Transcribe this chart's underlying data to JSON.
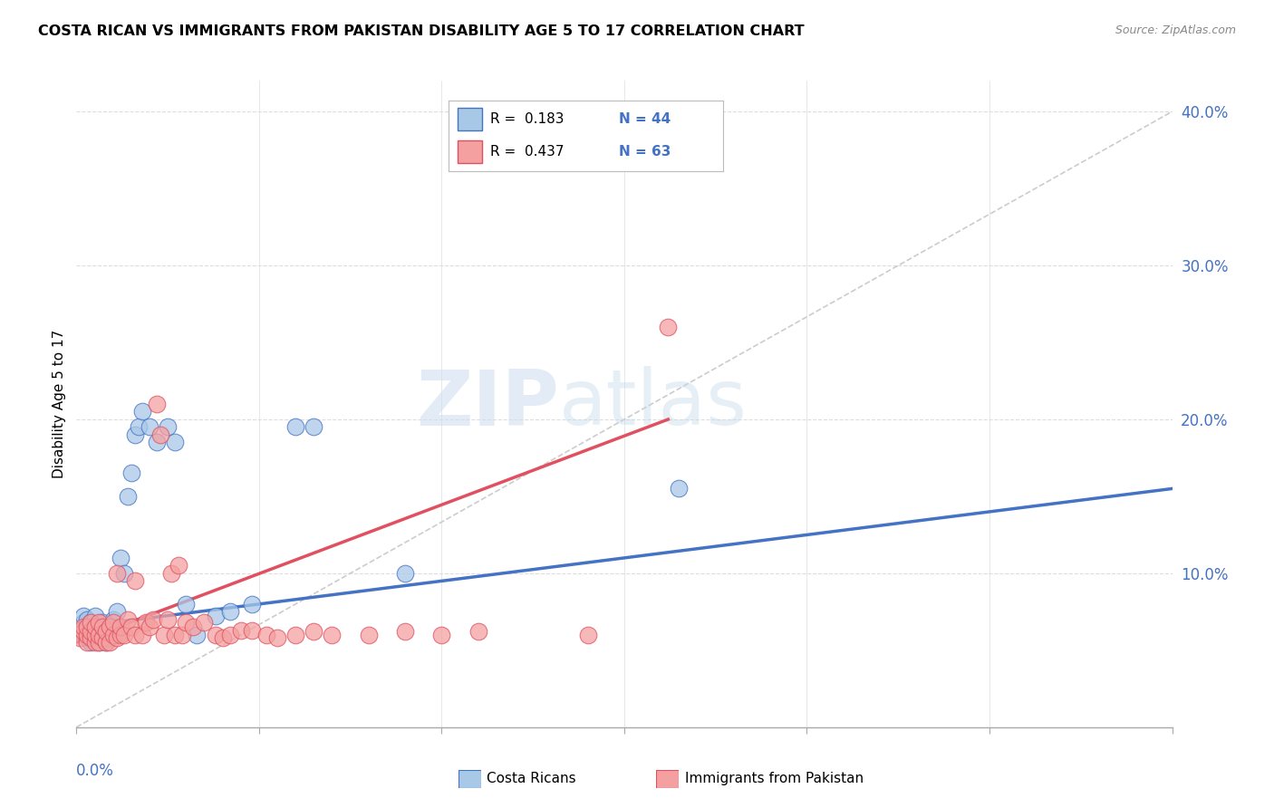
{
  "title": "COSTA RICAN VS IMMIGRANTS FROM PAKISTAN DISABILITY AGE 5 TO 17 CORRELATION CHART",
  "source": "Source: ZipAtlas.com",
  "ylabel": "Disability Age 5 to 17",
  "color_blue": "#a8c8e8",
  "color_pink": "#f4a0a0",
  "color_blue_line": "#4472C4",
  "color_pink_line": "#E05060",
  "color_diag_line": "#cccccc",
  "watermark_zip": "ZIP",
  "watermark_atlas": "atlas",
  "xlim": [
    0.0,
    0.3
  ],
  "ylim": [
    0.0,
    0.42
  ],
  "blue_points_x": [
    0.001,
    0.002,
    0.002,
    0.003,
    0.003,
    0.003,
    0.004,
    0.004,
    0.004,
    0.005,
    0.005,
    0.005,
    0.006,
    0.006,
    0.006,
    0.007,
    0.007,
    0.008,
    0.008,
    0.009,
    0.009,
    0.01,
    0.01,
    0.011,
    0.012,
    0.013,
    0.014,
    0.015,
    0.016,
    0.017,
    0.018,
    0.02,
    0.022,
    0.025,
    0.027,
    0.03,
    0.033,
    0.038,
    0.042,
    0.048,
    0.06,
    0.065,
    0.09,
    0.165
  ],
  "blue_points_y": [
    0.062,
    0.068,
    0.072,
    0.058,
    0.065,
    0.07,
    0.055,
    0.062,
    0.068,
    0.06,
    0.065,
    0.072,
    0.055,
    0.06,
    0.065,
    0.06,
    0.068,
    0.055,
    0.062,
    0.058,
    0.065,
    0.06,
    0.07,
    0.075,
    0.11,
    0.1,
    0.15,
    0.165,
    0.19,
    0.195,
    0.205,
    0.195,
    0.185,
    0.195,
    0.185,
    0.08,
    0.06,
    0.072,
    0.075,
    0.08,
    0.195,
    0.195,
    0.1,
    0.155
  ],
  "pink_points_x": [
    0.001,
    0.002,
    0.002,
    0.003,
    0.003,
    0.003,
    0.004,
    0.004,
    0.004,
    0.005,
    0.005,
    0.005,
    0.006,
    0.006,
    0.006,
    0.007,
    0.007,
    0.008,
    0.008,
    0.009,
    0.009,
    0.01,
    0.01,
    0.011,
    0.011,
    0.012,
    0.012,
    0.013,
    0.014,
    0.015,
    0.016,
    0.016,
    0.018,
    0.019,
    0.02,
    0.021,
    0.022,
    0.023,
    0.024,
    0.025,
    0.026,
    0.027,
    0.028,
    0.029,
    0.03,
    0.032,
    0.035,
    0.038,
    0.04,
    0.042,
    0.045,
    0.048,
    0.052,
    0.055,
    0.06,
    0.065,
    0.07,
    0.08,
    0.09,
    0.1,
    0.11,
    0.14,
    0.162
  ],
  "pink_points_y": [
    0.058,
    0.062,
    0.065,
    0.055,
    0.06,
    0.065,
    0.058,
    0.062,
    0.068,
    0.055,
    0.06,
    0.065,
    0.055,
    0.06,
    0.068,
    0.058,
    0.065,
    0.055,
    0.062,
    0.055,
    0.065,
    0.06,
    0.068,
    0.058,
    0.1,
    0.06,
    0.065,
    0.06,
    0.07,
    0.065,
    0.06,
    0.095,
    0.06,
    0.068,
    0.065,
    0.07,
    0.21,
    0.19,
    0.06,
    0.07,
    0.1,
    0.06,
    0.105,
    0.06,
    0.068,
    0.065,
    0.068,
    0.06,
    0.058,
    0.06,
    0.063,
    0.063,
    0.06,
    0.058,
    0.06,
    0.062,
    0.06,
    0.06,
    0.062,
    0.06,
    0.062,
    0.06,
    0.26
  ],
  "blue_line_x": [
    0.0,
    0.3
  ],
  "blue_line_y": [
    0.065,
    0.155
  ],
  "pink_line_x": [
    0.0,
    0.162
  ],
  "pink_line_y": [
    0.055,
    0.2
  ],
  "diag_line_x": [
    0.0,
    0.3
  ],
  "diag_line_y": [
    0.0,
    0.4
  ]
}
